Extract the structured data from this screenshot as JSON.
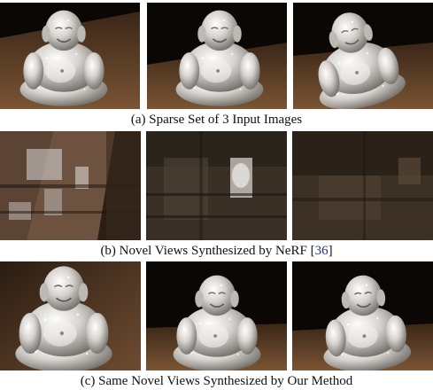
{
  "figure": {
    "captions": {
      "a": "(a) Sparse Set of 3 Input Images",
      "b_prefix": "(b) Novel Views Synthesized by NeRF [",
      "b_cite": "36",
      "b_suffix": "]",
      "c": "(c) Same Novel Views Synthesized by Our Method"
    },
    "rows": [
      {
        "id": "a",
        "panels": [
          "input-image-1",
          "input-image-2",
          "input-image-3"
        ]
      },
      {
        "id": "b",
        "panels": [
          "nerf-view-1",
          "nerf-view-2",
          "nerf-view-3"
        ]
      },
      {
        "id": "c",
        "panels": [
          "ours-view-1",
          "ours-view-2",
          "ours-view-3"
        ]
      }
    ],
    "colors": {
      "background_dark": "#0c0806",
      "table_wood": "#6b4a30",
      "statue_silver": "#d9d6d2",
      "caption_text": "#111111",
      "citation_link": "#1f2f7a"
    }
  }
}
